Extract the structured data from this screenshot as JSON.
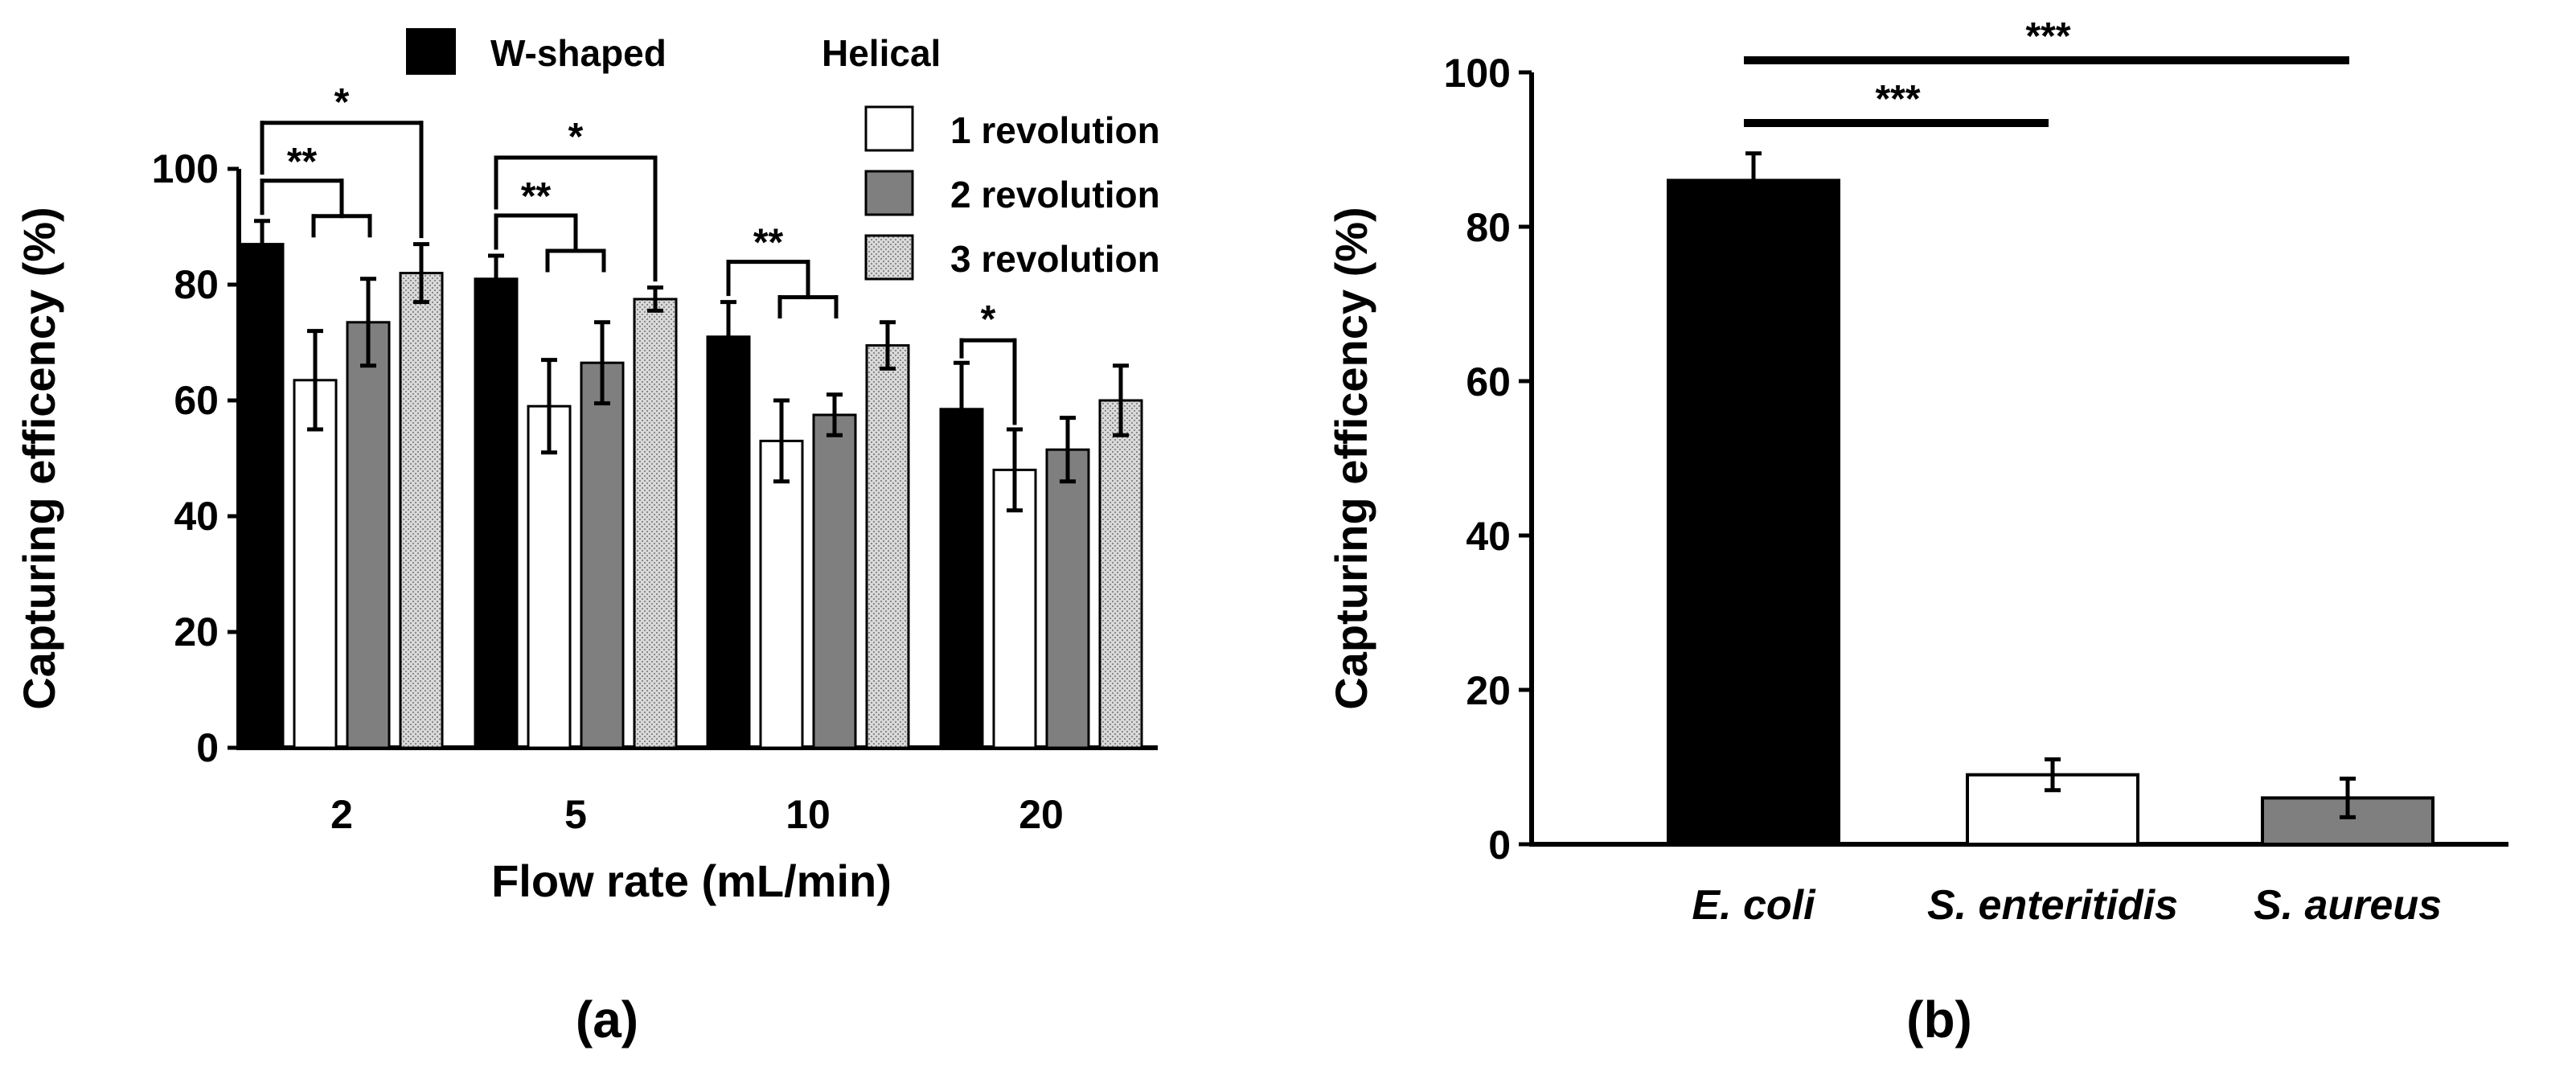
{
  "chart_data": [
    {
      "type": "bar",
      "panel_label": "(a)",
      "xlabel": "Flow rate (mL/min)",
      "ylabel": "Capturing efficency (%)",
      "ylim": [
        0,
        100
      ],
      "yticks": [
        "0",
        "20",
        "40",
        "60",
        "80",
        "100"
      ],
      "categories": [
        "2",
        "5",
        "10",
        "20"
      ],
      "legend": {
        "w_shaped": "W-shaped",
        "helical": "Helical",
        "rev1": "1 revolution",
        "rev2": "2 revolution",
        "rev3": "3 revolution"
      },
      "series": [
        {
          "name": "W-shaped",
          "color": "#000000",
          "values": [
            87,
            81,
            71,
            58.5
          ],
          "errors": [
            4,
            4,
            6,
            8
          ]
        },
        {
          "name": "1 revolution",
          "color": "#ffffff",
          "values": [
            63.5,
            59,
            53,
            48
          ],
          "errors": [
            8.5,
            8,
            7,
            7
          ]
        },
        {
          "name": "2 revolution",
          "color": "#7f7f7f",
          "values": [
            73.5,
            66.5,
            57.5,
            51.5
          ],
          "errors": [
            7.5,
            7,
            3.5,
            5.5
          ]
        },
        {
          "name": "3 revolution",
          "color": "#cfcfcf",
          "values": [
            82,
            77.5,
            69.5,
            60
          ],
          "errors": [
            5,
            2,
            4,
            6
          ]
        }
      ],
      "significance": [
        {
          "group": "2",
          "label": "**",
          "type": "bracket"
        },
        {
          "group": "2",
          "label": "*",
          "type": "wide"
        },
        {
          "group": "5",
          "label": "**",
          "type": "bracket"
        },
        {
          "group": "5",
          "label": "*",
          "type": "wide"
        },
        {
          "group": "10",
          "label": "**",
          "type": "bracket"
        },
        {
          "group": "20",
          "label": "*",
          "type": "pair"
        }
      ]
    },
    {
      "type": "bar",
      "panel_label": "(b)",
      "xlabel": "",
      "ylabel": "Capturing efficency (%)",
      "ylim": [
        0,
        100
      ],
      "yticks": [
        "0",
        "20",
        "40",
        "60",
        "80",
        "100"
      ],
      "categories": [
        "E. coli",
        "S. enteritidis",
        "S. aureus"
      ],
      "values": [
        86,
        9,
        6
      ],
      "errors": [
        3.5,
        2,
        2.5
      ],
      "colors": [
        "#000000",
        "#ffffff",
        "#7f7f7f"
      ],
      "significance": [
        {
          "from": "E. coli",
          "to": "S. enteritidis",
          "label": "***"
        },
        {
          "from": "E. coli",
          "to": "S. aureus",
          "label": "***"
        }
      ]
    }
  ]
}
